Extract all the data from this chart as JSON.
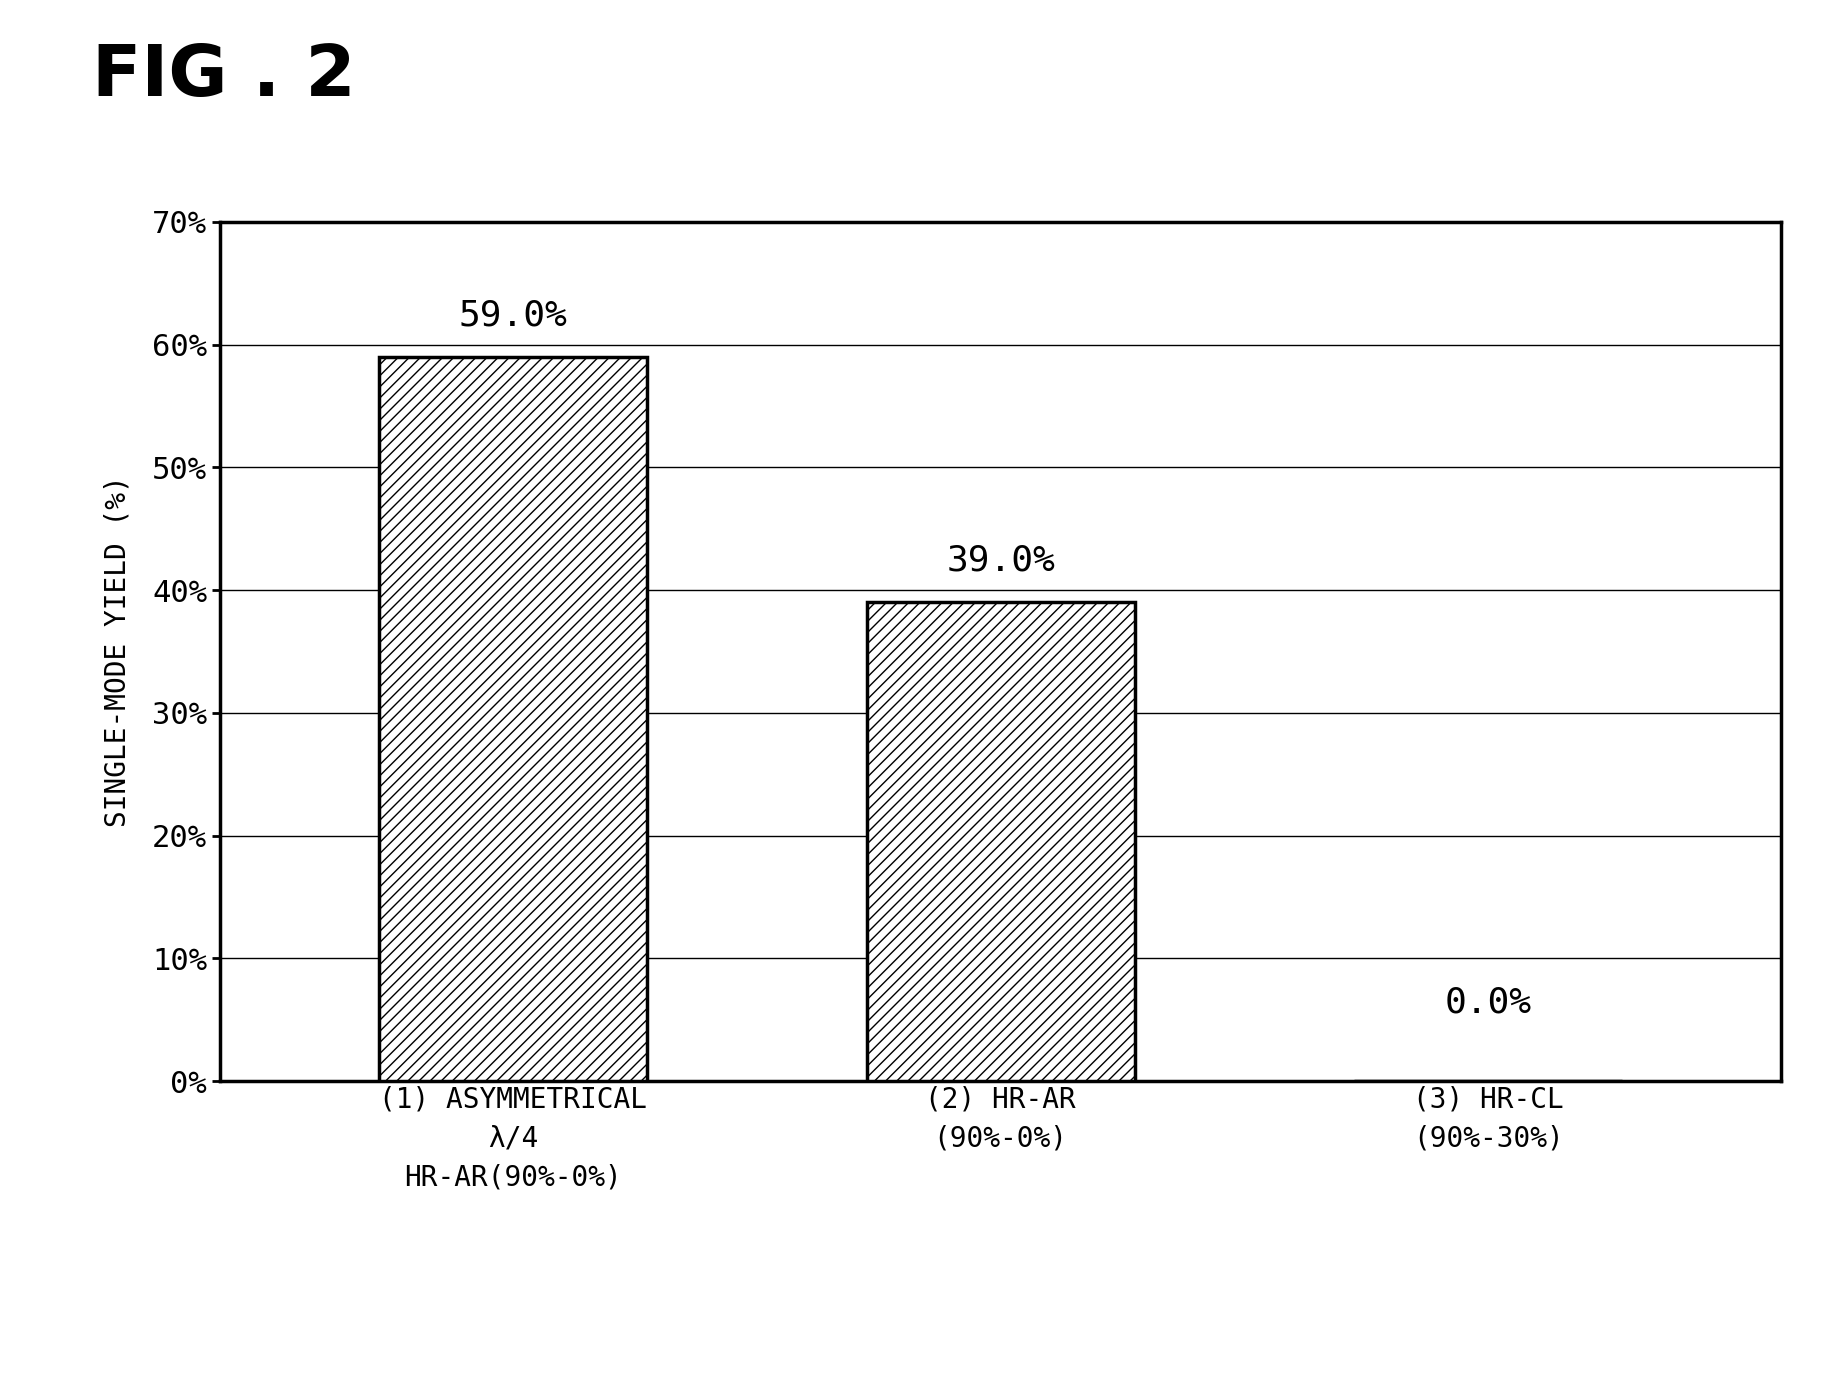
{
  "fig_label": "FIG . 2",
  "categories": [
    "(1) ASYMMETRICAL\nλ/4\nHR-AR(90%-0%)",
    "(2) HR-AR\n(90%-0%)",
    "(3) HR-CL\n(90%-30%)"
  ],
  "values": [
    59.0,
    39.0,
    0.0
  ],
  "value_labels": [
    "59.0%",
    "39.0%",
    "0.0%"
  ],
  "ylabel": "SINGLE-MODE YIELD (%)",
  "ylim": [
    0,
    70
  ],
  "yticks": [
    0,
    10,
    20,
    30,
    40,
    50,
    60,
    70
  ],
  "ytick_labels": [
    "0%",
    "10%",
    "20%",
    "30%",
    "40%",
    "50%",
    "60%",
    "70%"
  ],
  "bar_color": "#ffffff",
  "hatch": "///",
  "edge_color": "#000000",
  "background_color": "#ffffff",
  "bar_width": 0.55,
  "label_fontsize": 20,
  "value_fontsize": 26,
  "ylabel_fontsize": 20,
  "tick_fontsize": 22,
  "fig_label_fontsize": 52,
  "value_label_offsets": [
    2.0,
    2.0,
    3.0
  ]
}
